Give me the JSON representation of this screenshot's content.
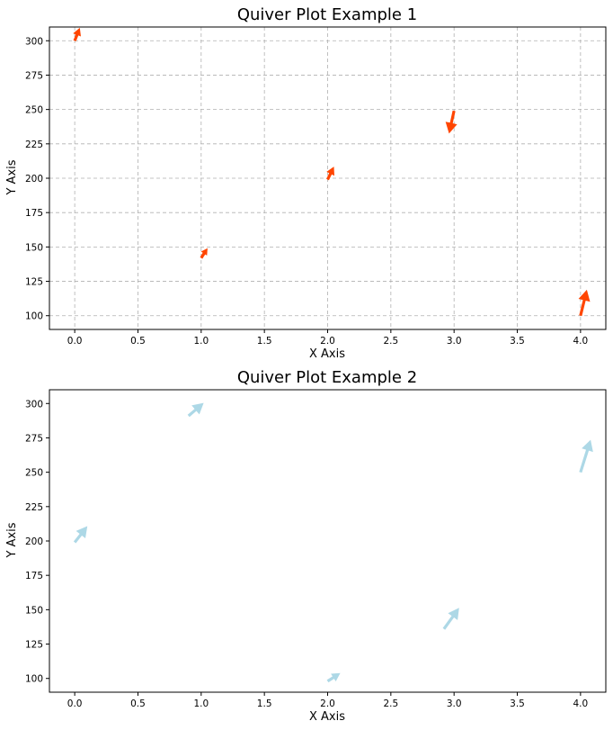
{
  "chart_data": [
    {
      "type": "quiver",
      "title": "Quiver Plot Example 1",
      "xlabel": "X Axis",
      "ylabel": "Y Axis",
      "xlim": [
        -0.2,
        4.2
      ],
      "ylim": [
        90,
        310
      ],
      "xticks": [
        0.0,
        0.5,
        1.0,
        1.5,
        2.0,
        2.5,
        3.0,
        3.5,
        4.0
      ],
      "xtick_labels": [
        "0.0",
        "0.5",
        "1.0",
        "1.5",
        "2.0",
        "2.5",
        "3.0",
        "3.5",
        "4.0"
      ],
      "yticks": [
        100,
        125,
        150,
        175,
        200,
        225,
        250,
        275,
        300
      ],
      "ytick_labels": [
        "100",
        "125",
        "150",
        "175",
        "200",
        "225",
        "250",
        "275",
        "300"
      ],
      "grid": true,
      "color": "#ff4500",
      "vectors": [
        {
          "x": 0,
          "y": 300,
          "u": 0.04,
          "v": 8
        },
        {
          "x": 1,
          "y": 142,
          "u": 0.05,
          "v": 6
        },
        {
          "x": 2,
          "y": 199,
          "u": 0.05,
          "v": 8
        },
        {
          "x": 3,
          "y": 249,
          "u": -0.04,
          "v": -14
        },
        {
          "x": 4,
          "y": 100,
          "u": 0.05,
          "v": 16
        }
      ]
    },
    {
      "type": "quiver",
      "title": "Quiver Plot Example 2",
      "xlabel": "X Axis",
      "ylabel": "Y Axis",
      "xlim": [
        -0.2,
        4.2
      ],
      "ylim": [
        90,
        310
      ],
      "xticks": [
        0.0,
        0.5,
        1.0,
        1.5,
        2.0,
        2.5,
        3.0,
        3.5,
        4.0
      ],
      "xtick_labels": [
        "0.0",
        "0.5",
        "1.0",
        "1.5",
        "2.0",
        "2.5",
        "3.0",
        "3.5",
        "4.0"
      ],
      "yticks": [
        100,
        125,
        150,
        175,
        200,
        225,
        250,
        275,
        300
      ],
      "ytick_labels": [
        "100",
        "125",
        "150",
        "175",
        "200",
        "225",
        "250",
        "275",
        "300"
      ],
      "grid": false,
      "color": "#add8e6",
      "vectors": [
        {
          "x": 0,
          "y": 199,
          "u": 0.1,
          "v": 10
        },
        {
          "x": 0.9,
          "y": 291,
          "u": 0.12,
          "v": 8
        },
        {
          "x": 2,
          "y": 98,
          "u": 0.1,
          "v": 5
        },
        {
          "x": 2.92,
          "y": 136,
          "u": 0.12,
          "v": 13
        },
        {
          "x": 4,
          "y": 250,
          "u": 0.08,
          "v": 20
        }
      ]
    }
  ]
}
